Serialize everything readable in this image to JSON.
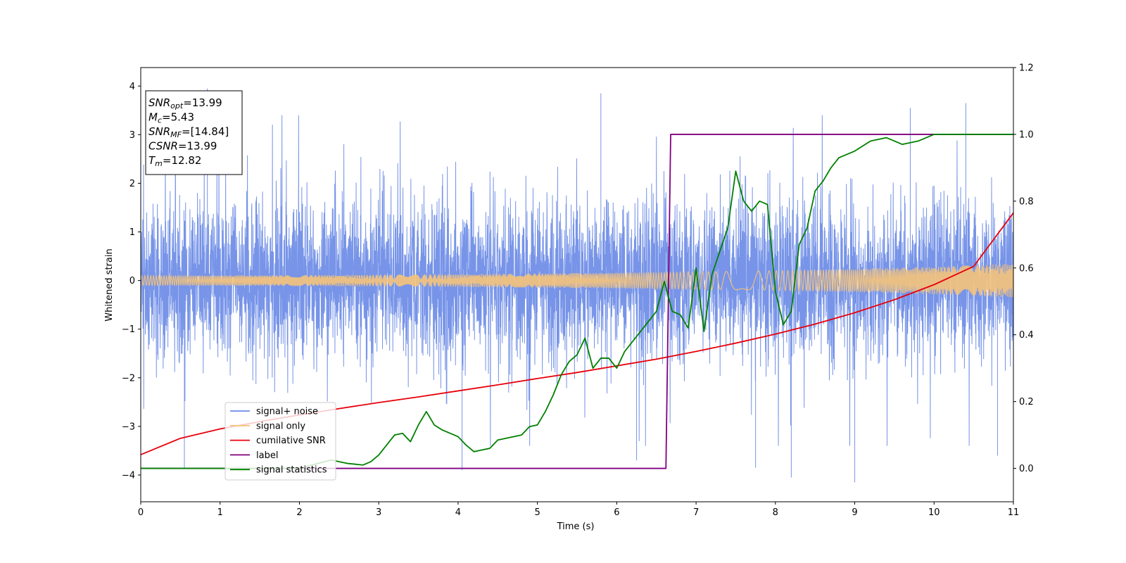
{
  "chart_data": {
    "type": "line",
    "xlabel": "Time (s)",
    "ylabel": "Whitened strain",
    "xlim": [
      0,
      11
    ],
    "ylim": [
      -4.55,
      4.38
    ],
    "ylim_right": [
      -0.1,
      1.2
    ],
    "x_ticks": [
      0,
      1,
      2,
      3,
      4,
      5,
      6,
      7,
      8,
      9,
      10,
      11
    ],
    "y_ticks": [
      -4,
      -3,
      -2,
      -1,
      0,
      1,
      2,
      3,
      4
    ],
    "y_ticks_right": [
      0.0,
      0.2,
      0.4,
      0.6,
      0.8,
      1.0,
      1.2
    ],
    "grid": false,
    "legend_position": "lower-left",
    "info_box": [
      {
        "base": "SNR",
        "sub": "opt",
        "rest": "=13.99"
      },
      {
        "base": "M",
        "sub": "c",
        "rest": "=5.43"
      },
      {
        "base": "SNR",
        "sub": "MF",
        "rest": "=[14.84]"
      },
      {
        "base": "CSNR",
        "sub": "",
        "rest": "=13.99"
      },
      {
        "base": "T",
        "sub": "m",
        "rest": "=12.82"
      }
    ],
    "series": [
      {
        "name": "signal+ noise",
        "color": "#6b8be6",
        "axis": "left",
        "style": "dense-noise",
        "envelope_typical": [
          -1.6,
          1.6
        ],
        "peaks": [
          [
            0.84,
            3.95
          ],
          [
            0.55,
            -3.85
          ],
          [
            5.8,
            3.85
          ],
          [
            9.0,
            -4.15
          ],
          [
            8.2,
            -4.05
          ],
          [
            7.75,
            -3.85
          ],
          [
            10.4,
            3.65
          ],
          [
            10.8,
            -3.6
          ],
          [
            4.05,
            -3.9
          ],
          [
            6.25,
            -3.7
          ],
          [
            9.7,
            3.55
          ]
        ]
      },
      {
        "name": "signal only",
        "color": "#f5c37a",
        "axis": "left",
        "style": "chirp",
        "amplitude_x": [
          0,
          2,
          4,
          6,
          8,
          10,
          11
        ],
        "amplitude_y": [
          0.1,
          0.11,
          0.13,
          0.16,
          0.2,
          0.28,
          0.35
        ]
      },
      {
        "name": "cumilative SNR",
        "color": "#e8000b",
        "axis": "right",
        "x": [
          0,
          0.5,
          1,
          1.5,
          2,
          2.5,
          3,
          3.5,
          4,
          4.5,
          5,
          5.5,
          6,
          6.5,
          7,
          7.5,
          8,
          8.5,
          9,
          9.5,
          10,
          10.5,
          11
        ],
        "y": [
          0.041,
          0.09,
          0.118,
          0.14,
          0.16,
          0.179,
          0.197,
          0.214,
          0.232,
          0.25,
          0.269,
          0.287,
          0.307,
          0.327,
          0.35,
          0.375,
          0.402,
          0.432,
          0.466,
          0.505,
          0.55,
          0.605,
          0.765
        ]
      },
      {
        "name": "label",
        "color": "#800080",
        "axis": "right",
        "x": [
          0,
          6.62,
          6.68,
          11
        ],
        "y": [
          0.0,
          0.0,
          1.0,
          1.0
        ]
      },
      {
        "name": "signal statistics",
        "color": "#008000",
        "axis": "right",
        "x": [
          0,
          1,
          2,
          2.4,
          2.6,
          2.8,
          2.9,
          3.0,
          3.1,
          3.2,
          3.3,
          3.4,
          3.5,
          3.6,
          3.7,
          3.8,
          3.9,
          4.0,
          4.1,
          4.2,
          4.3,
          4.4,
          4.5,
          4.6,
          4.7,
          4.8,
          4.9,
          5.0,
          5.1,
          5.2,
          5.3,
          5.4,
          5.5,
          5.6,
          5.7,
          5.8,
          5.9,
          6.0,
          6.1,
          6.2,
          6.3,
          6.4,
          6.5,
          6.6,
          6.7,
          6.8,
          6.9,
          7.0,
          7.1,
          7.2,
          7.3,
          7.4,
          7.5,
          7.6,
          7.7,
          7.8,
          7.9,
          8.0,
          8.1,
          8.2,
          8.3,
          8.4,
          8.5,
          8.6,
          8.7,
          8.8,
          8.9,
          9.0,
          9.2,
          9.4,
          9.6,
          9.8,
          10.0,
          10.2,
          10.4,
          10.6,
          10.8,
          11.0
        ],
        "y": [
          0.0,
          0.0,
          0.0,
          0.025,
          0.015,
          0.01,
          0.02,
          0.04,
          0.07,
          0.1,
          0.105,
          0.08,
          0.13,
          0.17,
          0.13,
          0.115,
          0.105,
          0.095,
          0.07,
          0.05,
          0.055,
          0.06,
          0.085,
          0.09,
          0.095,
          0.1,
          0.125,
          0.13,
          0.17,
          0.22,
          0.28,
          0.32,
          0.34,
          0.39,
          0.3,
          0.33,
          0.33,
          0.3,
          0.35,
          0.38,
          0.41,
          0.44,
          0.47,
          0.56,
          0.47,
          0.46,
          0.42,
          0.6,
          0.41,
          0.58,
          0.65,
          0.72,
          0.89,
          0.8,
          0.77,
          0.8,
          0.79,
          0.53,
          0.43,
          0.47,
          0.67,
          0.72,
          0.83,
          0.86,
          0.9,
          0.93,
          0.94,
          0.95,
          0.98,
          0.99,
          0.97,
          0.98,
          1.0,
          1.0,
          1.0,
          1.0,
          1.0,
          1.0
        ]
      }
    ]
  }
}
